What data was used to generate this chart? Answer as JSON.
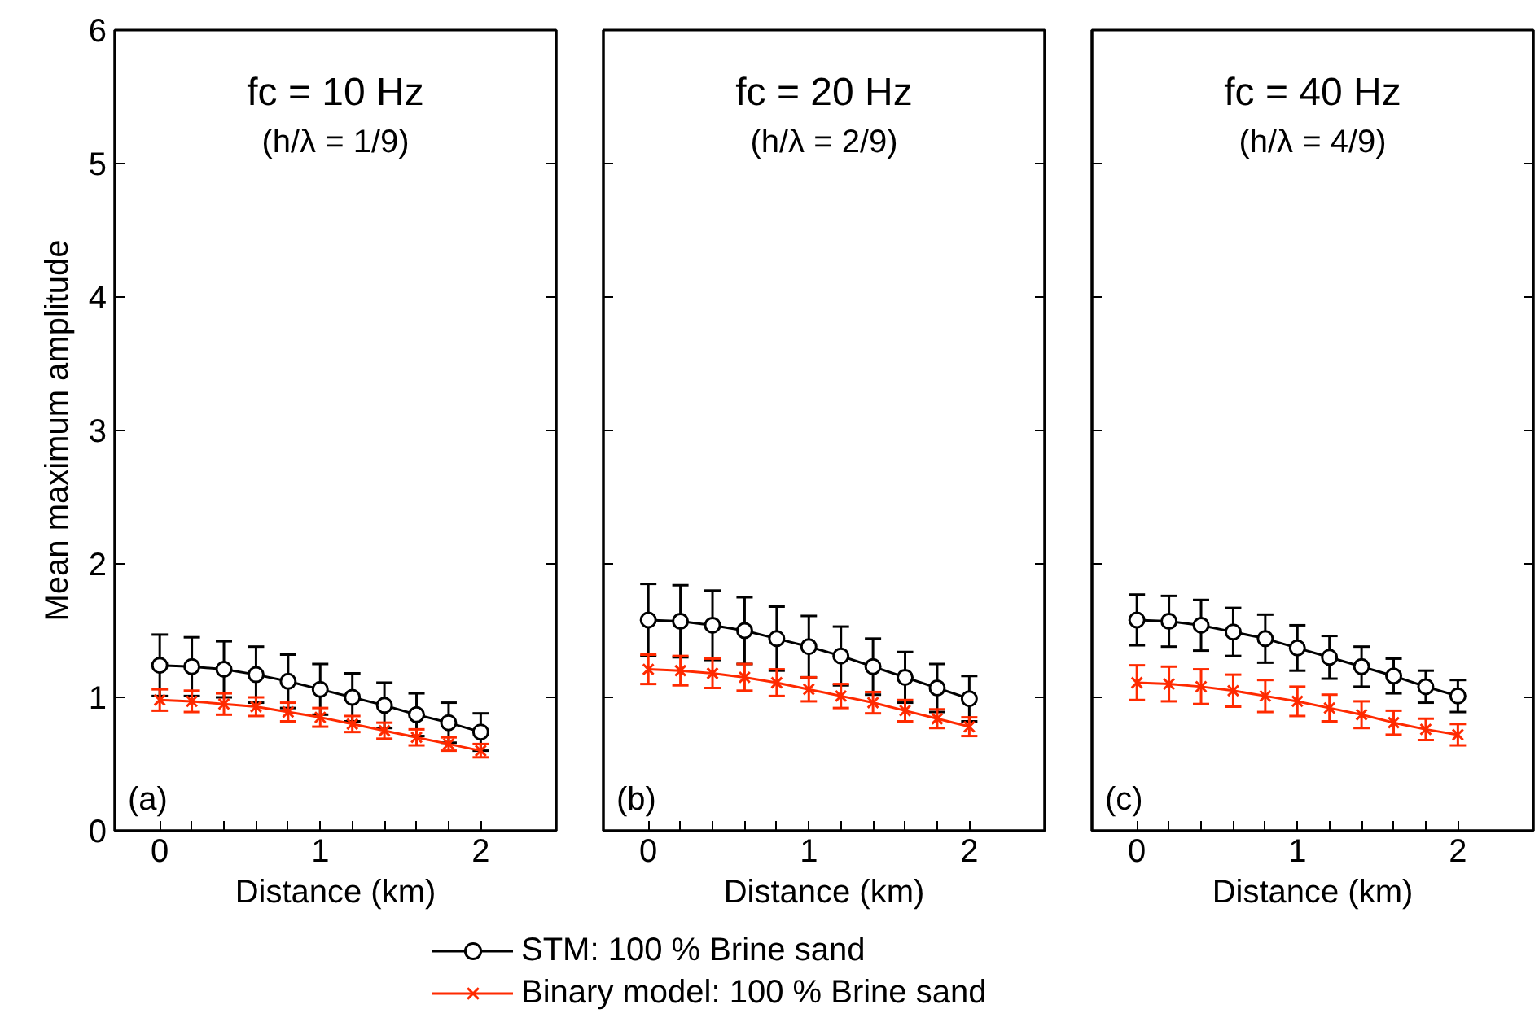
{
  "chart_data": [
    {
      "type": "line",
      "title": "fc = 10 Hz",
      "subtitle": "(h/λ = 1/9)",
      "xlabel": "Distance (km)",
      "ylabel": "Mean maximum amplitude",
      "annotations": [
        "(a)"
      ],
      "x": [
        0,
        0.2,
        0.4,
        0.6,
        0.8,
        1.0,
        1.2,
        1.4,
        1.6,
        1.8,
        2.0
      ],
      "xlim": [
        -0.28,
        2.47
      ],
      "xticks": [
        0,
        {
          "value": 0.2,
          "label": null
        },
        {
          "value": 0.4,
          "label": null
        },
        {
          "value": 0.6,
          "label": null
        },
        {
          "value": 0.8,
          "label": null
        },
        1,
        {
          "value": 1.2,
          "label": null
        },
        {
          "value": 1.4,
          "label": null
        },
        {
          "value": 1.6,
          "label": null
        },
        {
          "value": 1.8,
          "label": null
        },
        2
      ],
      "ylim": [
        0,
        6
      ],
      "yticks": [
        0,
        1,
        2,
        3,
        4,
        5,
        6
      ],
      "legend": "bottom",
      "grid": false,
      "series": [
        {
          "name": "STM: 100 % Brine sand",
          "color": "#000000",
          "marker": "circle",
          "values": [
            1.24,
            1.23,
            1.21,
            1.17,
            1.12,
            1.06,
            1.0,
            0.94,
            0.87,
            0.81,
            0.74
          ],
          "errors": [
            0.23,
            0.22,
            0.21,
            0.21,
            0.2,
            0.19,
            0.18,
            0.17,
            0.16,
            0.15,
            0.14
          ]
        },
        {
          "name": "Binary model: 100 % Brine sand",
          "color": "#ff2a00",
          "marker": "cross",
          "values": [
            0.98,
            0.97,
            0.95,
            0.93,
            0.89,
            0.85,
            0.8,
            0.75,
            0.7,
            0.65,
            0.6
          ],
          "errors": [
            0.08,
            0.08,
            0.08,
            0.07,
            0.07,
            0.07,
            0.06,
            0.06,
            0.06,
            0.05,
            0.05
          ]
        }
      ]
    },
    {
      "type": "line",
      "title": "fc = 20 Hz",
      "subtitle": "(h/λ = 2/9)",
      "xlabel": "Distance (km)",
      "annotations": [
        "(b)"
      ],
      "x": [
        0,
        0.2,
        0.4,
        0.6,
        0.8,
        1.0,
        1.2,
        1.4,
        1.6,
        1.8,
        2.0
      ],
      "xlim": [
        -0.28,
        2.47
      ],
      "xticks": [
        0,
        {
          "value": 0.2,
          "label": null
        },
        {
          "value": 0.4,
          "label": null
        },
        {
          "value": 0.6,
          "label": null
        },
        {
          "value": 0.8,
          "label": null
        },
        1,
        {
          "value": 1.2,
          "label": null
        },
        {
          "value": 1.4,
          "label": null
        },
        {
          "value": 1.6,
          "label": null
        },
        {
          "value": 1.8,
          "label": null
        },
        2
      ],
      "ylim": [
        0,
        6
      ],
      "yticks": [
        0,
        1,
        2,
        3,
        4,
        5,
        6
      ],
      "tick_labels": "x",
      "grid": false,
      "series": [
        {
          "color": "#000000",
          "marker": "circle",
          "values": [
            1.58,
            1.57,
            1.54,
            1.5,
            1.44,
            1.38,
            1.31,
            1.23,
            1.15,
            1.07,
            0.99
          ],
          "errors": [
            0.27,
            0.27,
            0.26,
            0.25,
            0.24,
            0.23,
            0.22,
            0.21,
            0.19,
            0.18,
            0.17
          ]
        },
        {
          "color": "#ff2a00",
          "marker": "cross",
          "values": [
            1.21,
            1.2,
            1.18,
            1.15,
            1.11,
            1.06,
            1.01,
            0.96,
            0.9,
            0.84,
            0.78
          ],
          "errors": [
            0.11,
            0.11,
            0.11,
            0.1,
            0.1,
            0.09,
            0.09,
            0.08,
            0.08,
            0.07,
            0.07
          ]
        }
      ]
    },
    {
      "type": "line",
      "title": "fc = 40 Hz",
      "subtitle": "(h/λ = 4/9)",
      "xlabel": "Distance (km)",
      "annotations": [
        "(c)"
      ],
      "x": [
        0,
        0.2,
        0.4,
        0.6,
        0.8,
        1.0,
        1.2,
        1.4,
        1.6,
        1.8,
        2.0
      ],
      "xlim": [
        -0.28,
        2.47
      ],
      "xticks": [
        0,
        {
          "value": 0.2,
          "label": null
        },
        {
          "value": 0.4,
          "label": null
        },
        {
          "value": 0.6,
          "label": null
        },
        {
          "value": 0.8,
          "label": null
        },
        1,
        {
          "value": 1.2,
          "label": null
        },
        {
          "value": 1.4,
          "label": null
        },
        {
          "value": 1.6,
          "label": null
        },
        {
          "value": 1.8,
          "label": null
        },
        2
      ],
      "ylim": [
        0,
        6
      ],
      "yticks": [
        0,
        1,
        2,
        3,
        4,
        5,
        6
      ],
      "tick_labels": "x",
      "grid": false,
      "series": [
        {
          "color": "#000000",
          "marker": "circle",
          "values": [
            1.58,
            1.57,
            1.54,
            1.49,
            1.44,
            1.37,
            1.3,
            1.23,
            1.16,
            1.08,
            1.01
          ],
          "errors": [
            0.19,
            0.19,
            0.19,
            0.18,
            0.18,
            0.17,
            0.16,
            0.15,
            0.13,
            0.12,
            0.12
          ]
        },
        {
          "color": "#ff2a00",
          "marker": "cross",
          "values": [
            1.11,
            1.1,
            1.08,
            1.05,
            1.01,
            0.97,
            0.92,
            0.87,
            0.81,
            0.76,
            0.72
          ],
          "errors": [
            0.13,
            0.13,
            0.13,
            0.12,
            0.12,
            0.11,
            0.1,
            0.1,
            0.09,
            0.08,
            0.08
          ]
        }
      ]
    }
  ]
}
